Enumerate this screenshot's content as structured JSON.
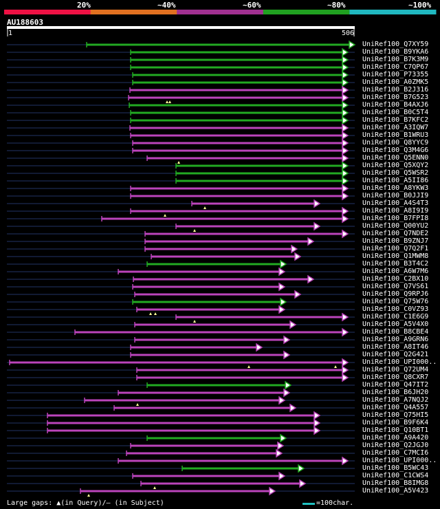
{
  "colors": {
    "bins": [
      "#ee1144",
      "#e07020",
      "#a03090",
      "#20a020",
      "#20b8c0"
    ],
    "green": "#22aa22",
    "magenta": "#bb44bb",
    "purple": "#8833aa",
    "line": "#223366",
    "query_bar": "#ffffff"
  },
  "identity_scale": {
    "labels": [
      "20%",
      "~40%",
      "~60%",
      "~80%",
      "~100%"
    ]
  },
  "query": {
    "id": "AU188603",
    "start": "1",
    "end": "506"
  },
  "legend": {
    "gaps": "Large gaps: ▲(in Query)/– (in Subject)",
    "scale": "=100char."
  },
  "chart_data": {
    "type": "alignment",
    "query_length": 506,
    "hits": [
      {
        "label": "UniRef100_Q7XY59",
        "start": 116,
        "end": 506,
        "color": "green",
        "marks": []
      },
      {
        "label": "UniRef100_B9YKA6",
        "start": 180,
        "end": 496,
        "color": "green",
        "marks": []
      },
      {
        "label": "UniRef100_B7K3M9",
        "start": 180,
        "end": 496,
        "color": "green",
        "marks": []
      },
      {
        "label": "UniRef100_C7QP67",
        "start": 180,
        "end": 496,
        "color": "green",
        "marks": []
      },
      {
        "label": "UniRef100_P73355",
        "start": 183,
        "end": 496,
        "color": "green",
        "marks": []
      },
      {
        "label": "UniRef100_A0ZMK5",
        "start": 183,
        "end": 496,
        "color": "green",
        "marks": []
      },
      {
        "label": "UniRef100_B2J316",
        "start": 179,
        "end": 496,
        "color": "magenta",
        "marks": []
      },
      {
        "label": "UniRef100_B7G523",
        "start": 177,
        "end": 496,
        "color": "magenta",
        "marks": [
          233,
          237
        ]
      },
      {
        "label": "UniRef100_B4AXJ6",
        "start": 178,
        "end": 496,
        "color": "green",
        "marks": []
      },
      {
        "label": "UniRef100_B0C5T4",
        "start": 180,
        "end": 496,
        "color": "green",
        "marks": []
      },
      {
        "label": "UniRef100_B7KFC2",
        "start": 180,
        "end": 496,
        "color": "green",
        "marks": []
      },
      {
        "label": "UniRef100_A3IQW7",
        "start": 179,
        "end": 496,
        "color": "magenta",
        "marks": []
      },
      {
        "label": "UniRef100_B1WRU3",
        "start": 180,
        "end": 496,
        "color": "magenta",
        "marks": []
      },
      {
        "label": "UniRef100_Q8YYC9",
        "start": 183,
        "end": 496,
        "color": "magenta",
        "marks": []
      },
      {
        "label": "UniRef100_Q3M4G6",
        "start": 183,
        "end": 496,
        "color": "magenta",
        "marks": []
      },
      {
        "label": "UniRef100_Q5ENN0",
        "start": 204,
        "end": 496,
        "color": "magenta",
        "marks": [
          250
        ]
      },
      {
        "label": "UniRef100_Q5XQY2",
        "start": 246,
        "end": 496,
        "color": "green",
        "marks": []
      },
      {
        "label": "UniRef100_Q5WSR2",
        "start": 246,
        "end": 496,
        "color": "green",
        "marks": []
      },
      {
        "label": "UniRef100_A5II86",
        "start": 246,
        "end": 496,
        "color": "green",
        "marks": []
      },
      {
        "label": "UniRef100_A8YKW3",
        "start": 180,
        "end": 496,
        "color": "magenta",
        "marks": []
      },
      {
        "label": "UniRef100_B0JJI9",
        "start": 180,
        "end": 496,
        "color": "magenta",
        "marks": []
      },
      {
        "label": "UniRef100_A4S4T3",
        "start": 269,
        "end": 455,
        "color": "magenta",
        "marks": [
          288
        ]
      },
      {
        "label": "UniRef100_A8I9I9",
        "start": 180,
        "end": 496,
        "color": "magenta",
        "marks": [
          230
        ]
      },
      {
        "label": "UniRef100_B7FPI8",
        "start": 138,
        "end": 496,
        "color": "magenta",
        "marks": []
      },
      {
        "label": "UniRef100_Q00YU2",
        "start": 246,
        "end": 455,
        "color": "magenta",
        "marks": [
          273
        ]
      },
      {
        "label": "UniRef100_Q7NDE2",
        "start": 201,
        "end": 496,
        "color": "magenta",
        "marks": []
      },
      {
        "label": "UniRef100_B9ZNJ7",
        "start": 201,
        "end": 446,
        "color": "magenta",
        "marks": []
      },
      {
        "label": "UniRef100_Q7Q2F1",
        "start": 201,
        "end": 422,
        "color": "magenta",
        "marks": []
      },
      {
        "label": "UniRef100_Q1MWM8",
        "start": 210,
        "end": 427,
        "color": "magenta",
        "marks": []
      },
      {
        "label": "UniRef100_B3T4C2",
        "start": 204,
        "end": 406,
        "color": "green",
        "marks": []
      },
      {
        "label": "UniRef100_A6W7M6",
        "start": 162,
        "end": 404,
        "color": "magenta",
        "marks": []
      },
      {
        "label": "UniRef100_C2BX10",
        "start": 184,
        "end": 446,
        "color": "magenta",
        "marks": []
      },
      {
        "label": "UniRef100_Q7VS61",
        "start": 183,
        "end": 404,
        "color": "magenta",
        "marks": []
      },
      {
        "label": "UniRef100_Q9RPJ6",
        "start": 186,
        "end": 427,
        "color": "magenta",
        "marks": []
      },
      {
        "label": "UniRef100_Q75W76",
        "start": 183,
        "end": 406,
        "color": "green",
        "marks": []
      },
      {
        "label": "UniRef100_C0VZ93",
        "start": 189,
        "end": 404,
        "color": "magenta",
        "marks": [
          209,
          216
        ]
      },
      {
        "label": "UniRef100_C1E6G9",
        "start": 246,
        "end": 496,
        "color": "magenta",
        "marks": [
          273
        ]
      },
      {
        "label": "UniRef100_A5V4X0",
        "start": 186,
        "end": 420,
        "color": "magenta",
        "marks": []
      },
      {
        "label": "UniRef100_B8CBE4",
        "start": 99,
        "end": 496,
        "color": "magenta",
        "marks": []
      },
      {
        "label": "UniRef100_A9GRN6",
        "start": 186,
        "end": 411,
        "color": "magenta",
        "marks": []
      },
      {
        "label": "UniRef100_A8IT46",
        "start": 180,
        "end": 371,
        "color": "magenta",
        "marks": []
      },
      {
        "label": "UniRef100_Q2G421",
        "start": 180,
        "end": 411,
        "color": "magenta",
        "marks": []
      },
      {
        "label": "UniRef100_UPI000..",
        "start": 4,
        "end": 496,
        "color": "magenta",
        "marks": [
          352,
          478
        ]
      },
      {
        "label": "UniRef100_Q72UM4",
        "start": 189,
        "end": 496,
        "color": "magenta",
        "marks": []
      },
      {
        "label": "UniRef100_Q8CXR7",
        "start": 189,
        "end": 496,
        "color": "magenta",
        "marks": []
      },
      {
        "label": "UniRef100_Q47IT2",
        "start": 204,
        "end": 413,
        "color": "green",
        "marks": []
      },
      {
        "label": "UniRef100_B6JH20",
        "start": 162,
        "end": 411,
        "color": "magenta",
        "marks": []
      },
      {
        "label": "UniRef100_A7NQJ2",
        "start": 113,
        "end": 404,
        "color": "magenta",
        "marks": [
          190
        ]
      },
      {
        "label": "UniRef100_Q4A557",
        "start": 156,
        "end": 420,
        "color": "magenta",
        "marks": []
      },
      {
        "label": "UniRef100_Q75HI5",
        "start": 59,
        "end": 455,
        "color": "magenta",
        "marks": []
      },
      {
        "label": "UniRef100_B9F6K4",
        "start": 59,
        "end": 455,
        "color": "magenta",
        "marks": []
      },
      {
        "label": "UniRef100_Q10BT1",
        "start": 59,
        "end": 455,
        "color": "magenta",
        "marks": []
      },
      {
        "label": "UniRef100_A9A420",
        "start": 204,
        "end": 406,
        "color": "green",
        "marks": []
      },
      {
        "label": "UniRef100_Q2JGJ0",
        "start": 180,
        "end": 402,
        "color": "magenta",
        "marks": []
      },
      {
        "label": "UniRef100_C7MCI6",
        "start": 174,
        "end": 400,
        "color": "magenta",
        "marks": []
      },
      {
        "label": "UniRef100_UPI000..",
        "start": 162,
        "end": 496,
        "color": "magenta",
        "marks": []
      },
      {
        "label": "UniRef100_B5WC43",
        "start": 255,
        "end": 432,
        "color": "green",
        "marks": []
      },
      {
        "label": "UniRef100_C1CWS4",
        "start": 183,
        "end": 404,
        "color": "magenta",
        "marks": []
      },
      {
        "label": "UniRef100_B8IMG8",
        "start": 195,
        "end": 434,
        "color": "magenta",
        "marks": [
          215
        ]
      },
      {
        "label": "UniRef100_A5V423",
        "start": 107,
        "end": 390,
        "color": "magenta",
        "marks": [
          119
        ]
      }
    ]
  }
}
